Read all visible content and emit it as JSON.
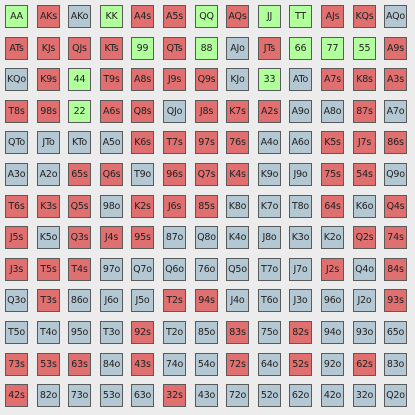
{
  "colors": {
    "r": "#e06f6f",
    "g": "#b2ff9e",
    "b": "#b4c8d4",
    "background": "#ececec"
  },
  "rows": [
    [
      [
        "AA",
        "g"
      ],
      [
        "AKs",
        "r"
      ],
      [
        "AKo",
        "b"
      ],
      [
        "KK",
        "g"
      ],
      [
        "A4s",
        "r"
      ],
      [
        "A5s",
        "r"
      ],
      [
        "QQ",
        "g"
      ],
      [
        "AQs",
        "r"
      ],
      [
        "JJ",
        "g"
      ],
      [
        "TT",
        "g"
      ],
      [
        "AJs",
        "r"
      ],
      [
        "KQs",
        "r"
      ],
      [
        "AQo",
        "b"
      ]
    ],
    [
      [
        "ATs",
        "r"
      ],
      [
        "KJs",
        "r"
      ],
      [
        "QJs",
        "r"
      ],
      [
        "KTs",
        "r"
      ],
      [
        "99",
        "g"
      ],
      [
        "QTs",
        "r"
      ],
      [
        "88",
        "g"
      ],
      [
        "AJo",
        "b"
      ],
      [
        "JTs",
        "r"
      ],
      [
        "66",
        "g"
      ],
      [
        "77",
        "g"
      ],
      [
        "55",
        "g"
      ],
      [
        "A9s",
        "r"
      ]
    ],
    [
      [
        "KQo",
        "b"
      ],
      [
        "K9s",
        "r"
      ],
      [
        "44",
        "g"
      ],
      [
        "T9s",
        "r"
      ],
      [
        "A8s",
        "r"
      ],
      [
        "J9s",
        "r"
      ],
      [
        "Q9s",
        "r"
      ],
      [
        "KJo",
        "b"
      ],
      [
        "33",
        "g"
      ],
      [
        "ATo",
        "b"
      ],
      [
        "A7s",
        "r"
      ],
      [
        "K8s",
        "r"
      ],
      [
        "A3s",
        "r"
      ]
    ],
    [
      [
        "T8s",
        "r"
      ],
      [
        "98s",
        "r"
      ],
      [
        "22",
        "g"
      ],
      [
        "A6s",
        "r"
      ],
      [
        "Q8s",
        "r"
      ],
      [
        "QJo",
        "b"
      ],
      [
        "J8s",
        "r"
      ],
      [
        "K7s",
        "r"
      ],
      [
        "A2s",
        "r"
      ],
      [
        "A9o",
        "b"
      ],
      [
        "A8o",
        "b"
      ],
      [
        "87s",
        "r"
      ],
      [
        "A7o",
        "b"
      ]
    ],
    [
      [
        "QTo",
        "b"
      ],
      [
        "JTo",
        "b"
      ],
      [
        "KTo",
        "b"
      ],
      [
        "A5o",
        "b"
      ],
      [
        "K6s",
        "r"
      ],
      [
        "T7s",
        "r"
      ],
      [
        "97s",
        "r"
      ],
      [
        "76s",
        "r"
      ],
      [
        "A4o",
        "b"
      ],
      [
        "A6o",
        "b"
      ],
      [
        "K5s",
        "r"
      ],
      [
        "J7s",
        "r"
      ],
      [
        "86s",
        "r"
      ]
    ],
    [
      [
        "A3o",
        "b"
      ],
      [
        "A2o",
        "b"
      ],
      [
        "65s",
        "r"
      ],
      [
        "Q6s",
        "r"
      ],
      [
        "T9o",
        "b"
      ],
      [
        "96s",
        "r"
      ],
      [
        "Q7s",
        "r"
      ],
      [
        "K4s",
        "r"
      ],
      [
        "K9o",
        "b"
      ],
      [
        "J9o",
        "b"
      ],
      [
        "75s",
        "r"
      ],
      [
        "54s",
        "r"
      ],
      [
        "Q9o",
        "b"
      ]
    ],
    [
      [
        "T6s",
        "r"
      ],
      [
        "K3s",
        "r"
      ],
      [
        "Q5s",
        "r"
      ],
      [
        "98o",
        "b"
      ],
      [
        "K2s",
        "r"
      ],
      [
        "J6s",
        "r"
      ],
      [
        "85s",
        "r"
      ],
      [
        "K8o",
        "b"
      ],
      [
        "K7o",
        "b"
      ],
      [
        "T8o",
        "b"
      ],
      [
        "64s",
        "r"
      ],
      [
        "K6o",
        "b"
      ],
      [
        "Q4s",
        "r"
      ]
    ],
    [
      [
        "J5s",
        "r"
      ],
      [
        "K5o",
        "b"
      ],
      [
        "Q3s",
        "r"
      ],
      [
        "J4s",
        "r"
      ],
      [
        "95s",
        "r"
      ],
      [
        "87o",
        "b"
      ],
      [
        "Q8o",
        "b"
      ],
      [
        "K4o",
        "b"
      ],
      [
        "J8o",
        "b"
      ],
      [
        "K3o",
        "b"
      ],
      [
        "K2o",
        "b"
      ],
      [
        "Q2s",
        "r"
      ],
      [
        "74s",
        "r"
      ]
    ],
    [
      [
        "J3s",
        "r"
      ],
      [
        "T5s",
        "r"
      ],
      [
        "T4s",
        "r"
      ],
      [
        "97o",
        "b"
      ],
      [
        "Q7o",
        "b"
      ],
      [
        "Q6o",
        "b"
      ],
      [
        "76o",
        "b"
      ],
      [
        "Q5o",
        "b"
      ],
      [
        "T7o",
        "b"
      ],
      [
        "J7o",
        "b"
      ],
      [
        "J2s",
        "r"
      ],
      [
        "Q4o",
        "b"
      ],
      [
        "84s",
        "r"
      ]
    ],
    [
      [
        "Q3o",
        "b"
      ],
      [
        "T3s",
        "r"
      ],
      [
        "86o",
        "b"
      ],
      [
        "J6o",
        "b"
      ],
      [
        "J5o",
        "b"
      ],
      [
        "T2s",
        "r"
      ],
      [
        "94s",
        "r"
      ],
      [
        "J4o",
        "b"
      ],
      [
        "T6o",
        "b"
      ],
      [
        "J3o",
        "b"
      ],
      [
        "96o",
        "b"
      ],
      [
        "J2o",
        "b"
      ],
      [
        "93s",
        "r"
      ]
    ],
    [
      [
        "T5o",
        "b"
      ],
      [
        "T4o",
        "b"
      ],
      [
        "95o",
        "b"
      ],
      [
        "T3o",
        "b"
      ],
      [
        "92s",
        "r"
      ],
      [
        "T2o",
        "b"
      ],
      [
        "85o",
        "b"
      ],
      [
        "83s",
        "r"
      ],
      [
        "75o",
        "b"
      ],
      [
        "82s",
        "r"
      ],
      [
        "94o",
        "b"
      ],
      [
        "93o",
        "b"
      ],
      [
        "65o",
        "b"
      ]
    ],
    [
      [
        "73s",
        "r"
      ],
      [
        "53s",
        "r"
      ],
      [
        "63s",
        "r"
      ],
      [
        "84o",
        "b"
      ],
      [
        "43s",
        "r"
      ],
      [
        "74o",
        "b"
      ],
      [
        "54o",
        "b"
      ],
      [
        "72s",
        "r"
      ],
      [
        "64o",
        "b"
      ],
      [
        "52s",
        "r"
      ],
      [
        "92o",
        "b"
      ],
      [
        "62s",
        "r"
      ],
      [
        "83o",
        "b"
      ]
    ],
    [
      [
        "42s",
        "r"
      ],
      [
        "82o",
        "b"
      ],
      [
        "73o",
        "b"
      ],
      [
        "53o",
        "b"
      ],
      [
        "63o",
        "b"
      ],
      [
        "32s",
        "r"
      ],
      [
        "43o",
        "b"
      ],
      [
        "72o",
        "b"
      ],
      [
        "52o",
        "b"
      ],
      [
        "62o",
        "b"
      ],
      [
        "42o",
        "b"
      ],
      [
        "32o",
        "b"
      ],
      [
        "Q2o",
        "b"
      ]
    ]
  ]
}
